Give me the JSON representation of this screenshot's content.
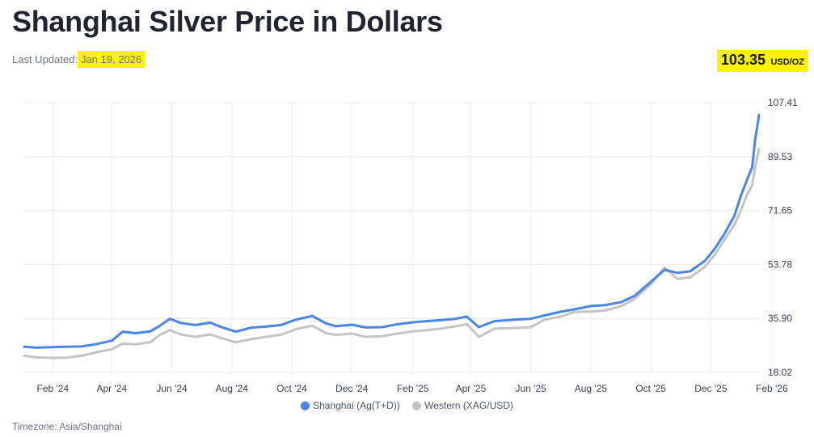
{
  "header": {
    "title": "Shanghai Silver Price in Dollars",
    "last_updated_label": "Last Updated:",
    "last_updated_date": "Jan 19, 2026",
    "price_value": "103.35",
    "price_unit": "USD/OZ",
    "highlight_color": "#fff200"
  },
  "footer": {
    "timezone": "Timezone: Asia/Shanghai"
  },
  "chart_data": {
    "type": "line",
    "title": "",
    "xlabel": "",
    "ylabel": "",
    "ylim": [
      18.02,
      107.41
    ],
    "y_ticks": [
      18.02,
      35.9,
      53.78,
      71.65,
      89.53,
      107.41
    ],
    "y_tick_labels": [
      "18.02",
      "35.90",
      "53.78",
      "71.65",
      "89.53",
      "107.41"
    ],
    "x_range": [
      "2024-01-03",
      "2026-01-19"
    ],
    "x_ticks": [
      "2024-02-01",
      "2024-04-01",
      "2024-06-01",
      "2024-08-01",
      "2024-10-01",
      "2024-12-01",
      "2025-02-01",
      "2025-04-01",
      "2025-06-01",
      "2025-08-01",
      "2025-10-01",
      "2025-12-01",
      "2026-02-01"
    ],
    "x_tick_labels": [
      "Feb '24",
      "Apr '24",
      "Jun '24",
      "Aug '24",
      "Oct '24",
      "Dec '24",
      "Feb '25",
      "Apr '25",
      "Jun '25",
      "Aug '25",
      "Oct '25",
      "Dec '25",
      "Feb '26"
    ],
    "grid": true,
    "legend_position": "bottom-center",
    "x": [
      "2024-01-03",
      "2024-01-15",
      "2024-02-01",
      "2024-02-15",
      "2024-03-01",
      "2024-03-15",
      "2024-04-01",
      "2024-04-12",
      "2024-04-25",
      "2024-05-10",
      "2024-05-20",
      "2024-05-30",
      "2024-06-10",
      "2024-06-25",
      "2024-07-10",
      "2024-07-20",
      "2024-08-05",
      "2024-08-20",
      "2024-09-05",
      "2024-09-20",
      "2024-10-05",
      "2024-10-22",
      "2024-11-05",
      "2024-11-15",
      "2024-12-01",
      "2024-12-15",
      "2025-01-01",
      "2025-01-15",
      "2025-02-01",
      "2025-02-15",
      "2025-03-01",
      "2025-03-15",
      "2025-03-28",
      "2025-04-09",
      "2025-04-25",
      "2025-05-15",
      "2025-06-01",
      "2025-06-15",
      "2025-07-01",
      "2025-07-15",
      "2025-08-01",
      "2025-08-15",
      "2025-09-01",
      "2025-09-15",
      "2025-10-01",
      "2025-10-15",
      "2025-10-28",
      "2025-11-10",
      "2025-11-25",
      "2025-12-05",
      "2025-12-15",
      "2025-12-25",
      "2026-01-01",
      "2026-01-07",
      "2026-01-12",
      "2026-01-15",
      "2026-01-19"
    ],
    "series": [
      {
        "name": "Shanghai (Ag(T+D))",
        "color": "#4a86e8",
        "values": [
          26.5,
          26.2,
          26.4,
          26.5,
          26.6,
          27.3,
          28.5,
          31.5,
          31.0,
          31.6,
          33.5,
          35.8,
          34.4,
          33.7,
          34.5,
          33.2,
          31.5,
          32.8,
          33.2,
          33.7,
          35.5,
          36.7,
          34.2,
          33.3,
          33.8,
          32.9,
          33.0,
          33.9,
          34.6,
          35.0,
          35.3,
          35.7,
          36.5,
          33.0,
          35.0,
          35.5,
          35.8,
          36.9,
          38.1,
          38.9,
          40.0,
          40.3,
          41.3,
          43.5,
          48.0,
          52.0,
          51.0,
          51.5,
          55.0,
          59.0,
          64.0,
          70.0,
          77.0,
          82.0,
          86.0,
          95.0,
          103.35
        ]
      },
      {
        "name": "Western (XAG/USD)",
        "color": "#c4c4c4",
        "values": [
          23.5,
          23.0,
          22.8,
          22.9,
          23.5,
          24.6,
          25.7,
          27.6,
          27.3,
          28.0,
          30.5,
          32.0,
          30.6,
          29.8,
          30.6,
          29.5,
          28.0,
          29.0,
          29.8,
          30.5,
          32.3,
          33.5,
          31.0,
          30.4,
          30.9,
          29.8,
          30.0,
          30.8,
          31.6,
          32.0,
          32.5,
          33.2,
          34.0,
          29.8,
          32.5,
          32.7,
          33.0,
          35.5,
          36.5,
          38.0,
          38.2,
          38.5,
          40.0,
          42.5,
          47.3,
          52.8,
          49.0,
          49.5,
          53.0,
          57.0,
          62.0,
          67.0,
          72.0,
          77.0,
          80.0,
          86.0,
          92.0
        ]
      }
    ]
  }
}
